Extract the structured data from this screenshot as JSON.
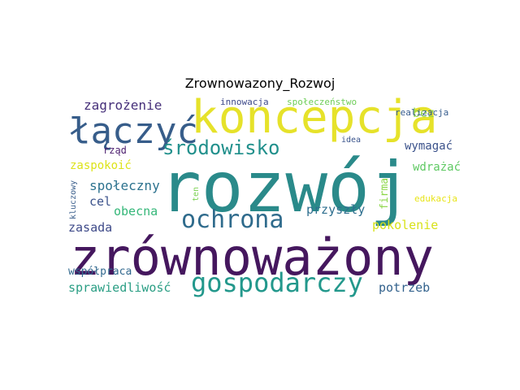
{
  "chart_data": {
    "type": "wordcloud",
    "title": "Zrownowazony_Rozwoj",
    "words": [
      {
        "text": "rozwój",
        "color": "#2a8a8a"
      },
      {
        "text": "zrównoważony",
        "color": "#45175e"
      },
      {
        "text": "koncepcja",
        "color": "#e6e22a"
      },
      {
        "text": "łączyć",
        "color": "#375d8a"
      },
      {
        "text": "gospodarczy",
        "color": "#23988c"
      },
      {
        "text": "ochrona",
        "color": "#2f6b8c"
      },
      {
        "text": "środowisko",
        "color": "#21908c"
      },
      {
        "text": "zagrożenie",
        "color": "#46307a"
      },
      {
        "text": "innowacja",
        "color": "#3e4a89"
      },
      {
        "text": "społeczeństwo",
        "color": "#6ece58"
      },
      {
        "text": "bez",
        "color": "#8fd14a"
      },
      {
        "text": "realizacja",
        "color": "#365c8d"
      },
      {
        "text": "idea",
        "color": "#3a548c"
      },
      {
        "text": "wymagać",
        "color": "#3b528b"
      },
      {
        "text": "wdrażać",
        "color": "#5ec962"
      },
      {
        "text": "rząd",
        "color": "#4b1d6e"
      },
      {
        "text": "zaspokoić",
        "color": "#dde318"
      },
      {
        "text": "społeczny",
        "color": "#2c728e"
      },
      {
        "text": "cel",
        "color": "#3b528b"
      },
      {
        "text": "obecna",
        "color": "#35b779"
      },
      {
        "text": "zasada",
        "color": "#3e4a89"
      },
      {
        "text": "kluczowy",
        "color": "#3b5f8c"
      },
      {
        "text": "ten",
        "color": "#7ad151"
      },
      {
        "text": "firma",
        "color": "#8bd646"
      },
      {
        "text": "edukacja",
        "color": "#e8e419"
      },
      {
        "text": "przyszły",
        "color": "#2d6e8e"
      },
      {
        "text": "pokolenie",
        "color": "#d8e219"
      },
      {
        "text": "współpraca",
        "color": "#31688e"
      },
      {
        "text": "sprawiedliwość",
        "color": "#2a9e84"
      },
      {
        "text": "potrzeb",
        "color": "#33628d"
      }
    ]
  }
}
